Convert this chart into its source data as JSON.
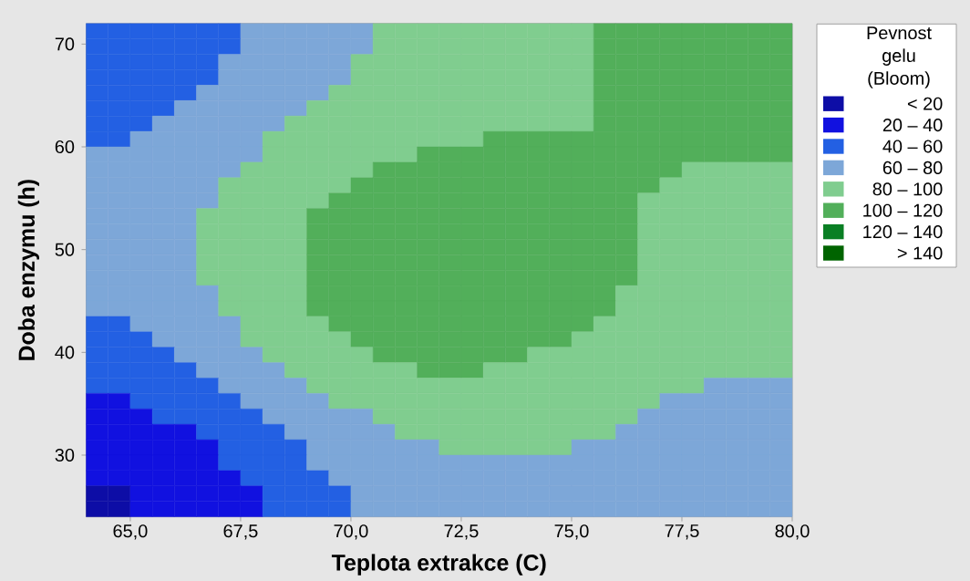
{
  "chart_data": {
    "type": "heatmap",
    "xlabel": "Teplota extrakce (C)",
    "ylabel": "Doba enzymu (h)",
    "clabel": "Pevnost gelu (Bloom)",
    "xlim": [
      64,
      80
    ],
    "xticks": [
      {
        "value": 65,
        "label": "65,0"
      },
      {
        "value": 67.5,
        "label": "67,5"
      },
      {
        "value": 70,
        "label": "70,0"
      },
      {
        "value": 72.5,
        "label": "72,5"
      },
      {
        "value": 75,
        "label": "75,0"
      },
      {
        "value": 77.5,
        "label": "77,5"
      },
      {
        "value": 80,
        "label": "80,0"
      }
    ],
    "ylim": [
      24,
      72
    ],
    "yticks": [
      30,
      40,
      50,
      60,
      70
    ],
    "cticks": [
      {
        "value": 10,
        "label": "< 20"
      },
      {
        "value": 30,
        "label": "20 – 40"
      },
      {
        "value": 50,
        "label": "40 – 60"
      },
      {
        "value": 70,
        "label": "60 – 80"
      },
      {
        "value": 90,
        "label": "80 – 100"
      },
      {
        "value": 110,
        "label": "100 – 120"
      },
      {
        "value": 130,
        "label": "120 – 140"
      },
      {
        "value": 150,
        "label": "> 140"
      }
    ],
    "colors": [
      "#0d0da6",
      "#1111e0",
      "#2360e3",
      "#7da7d8",
      "#80cd8f",
      "#52af5a",
      "#0a7f24",
      "#006400"
    ],
    "cells": [
      [
        50,
        50,
        50,
        50,
        50,
        50,
        50,
        70,
        70,
        70,
        70,
        70,
        70,
        90,
        90,
        90,
        90,
        90,
        90,
        90,
        90,
        90,
        90,
        110,
        110,
        110,
        110,
        110,
        110,
        110,
        110,
        110
      ],
      [
        50,
        50,
        50,
        50,
        50,
        50,
        50,
        70,
        70,
        70,
        70,
        70,
        70,
        90,
        90,
        90,
        90,
        90,
        90,
        90,
        90,
        90,
        90,
        110,
        110,
        110,
        110,
        110,
        110,
        110,
        110,
        110
      ],
      [
        50,
        50,
        50,
        50,
        50,
        50,
        70,
        70,
        70,
        70,
        70,
        70,
        90,
        90,
        90,
        90,
        90,
        90,
        90,
        90,
        90,
        90,
        90,
        110,
        110,
        110,
        110,
        110,
        110,
        110,
        110,
        110
      ],
      [
        50,
        50,
        50,
        50,
        50,
        50,
        70,
        70,
        70,
        70,
        70,
        70,
        90,
        90,
        90,
        90,
        90,
        90,
        90,
        90,
        90,
        90,
        90,
        110,
        110,
        110,
        110,
        110,
        110,
        110,
        110,
        110
      ],
      [
        50,
        50,
        50,
        50,
        50,
        70,
        70,
        70,
        70,
        70,
        70,
        90,
        90,
        90,
        90,
        90,
        90,
        90,
        90,
        90,
        90,
        90,
        90,
        110,
        110,
        110,
        110,
        110,
        110,
        110,
        110,
        110
      ],
      [
        50,
        50,
        50,
        50,
        70,
        70,
        70,
        70,
        70,
        70,
        90,
        90,
        90,
        90,
        90,
        90,
        90,
        90,
        90,
        90,
        90,
        90,
        90,
        110,
        110,
        110,
        110,
        110,
        110,
        110,
        110,
        110
      ],
      [
        50,
        50,
        50,
        70,
        70,
        70,
        70,
        70,
        70,
        90,
        90,
        90,
        90,
        90,
        90,
        90,
        90,
        90,
        90,
        90,
        90,
        90,
        90,
        110,
        110,
        110,
        110,
        110,
        110,
        110,
        110,
        110
      ],
      [
        50,
        50,
        70,
        70,
        70,
        70,
        70,
        70,
        90,
        90,
        90,
        90,
        90,
        90,
        90,
        90,
        90,
        90,
        110,
        110,
        110,
        110,
        110,
        110,
        110,
        110,
        110,
        110,
        110,
        110,
        110,
        110
      ],
      [
        70,
        70,
        70,
        70,
        70,
        70,
        70,
        70,
        90,
        90,
        90,
        90,
        90,
        90,
        90,
        110,
        110,
        110,
        110,
        110,
        110,
        110,
        110,
        110,
        110,
        110,
        110,
        110,
        110,
        110,
        110,
        110
      ],
      [
        70,
        70,
        70,
        70,
        70,
        70,
        70,
        90,
        90,
        90,
        90,
        90,
        90,
        110,
        110,
        110,
        110,
        110,
        110,
        110,
        110,
        110,
        110,
        110,
        110,
        110,
        110,
        90,
        90,
        90,
        90,
        90
      ],
      [
        70,
        70,
        70,
        70,
        70,
        70,
        90,
        90,
        90,
        90,
        90,
        90,
        110,
        110,
        110,
        110,
        110,
        110,
        110,
        110,
        110,
        110,
        110,
        110,
        110,
        110,
        90,
        90,
        90,
        90,
        90,
        90
      ],
      [
        70,
        70,
        70,
        70,
        70,
        70,
        90,
        90,
        90,
        90,
        90,
        110,
        110,
        110,
        110,
        110,
        110,
        110,
        110,
        110,
        110,
        110,
        110,
        110,
        110,
        90,
        90,
        90,
        90,
        90,
        90,
        90
      ],
      [
        70,
        70,
        70,
        70,
        70,
        90,
        90,
        90,
        90,
        90,
        110,
        110,
        110,
        110,
        110,
        110,
        110,
        110,
        110,
        110,
        110,
        110,
        110,
        110,
        110,
        90,
        90,
        90,
        90,
        90,
        90,
        90
      ],
      [
        70,
        70,
        70,
        70,
        70,
        90,
        90,
        90,
        90,
        90,
        110,
        110,
        110,
        110,
        110,
        110,
        110,
        110,
        110,
        110,
        110,
        110,
        110,
        110,
        110,
        90,
        90,
        90,
        90,
        90,
        90,
        90
      ],
      [
        70,
        70,
        70,
        70,
        70,
        90,
        90,
        90,
        90,
        90,
        110,
        110,
        110,
        110,
        110,
        110,
        110,
        110,
        110,
        110,
        110,
        110,
        110,
        110,
        110,
        90,
        90,
        90,
        90,
        90,
        90,
        90
      ],
      [
        70,
        70,
        70,
        70,
        70,
        90,
        90,
        90,
        90,
        90,
        110,
        110,
        110,
        110,
        110,
        110,
        110,
        110,
        110,
        110,
        110,
        110,
        110,
        110,
        110,
        90,
        90,
        90,
        90,
        90,
        90,
        90
      ],
      [
        70,
        70,
        70,
        70,
        70,
        90,
        90,
        90,
        90,
        90,
        110,
        110,
        110,
        110,
        110,
        110,
        110,
        110,
        110,
        110,
        110,
        110,
        110,
        110,
        110,
        90,
        90,
        90,
        90,
        90,
        90,
        90
      ],
      [
        70,
        70,
        70,
        70,
        70,
        70,
        90,
        90,
        90,
        90,
        110,
        110,
        110,
        110,
        110,
        110,
        110,
        110,
        110,
        110,
        110,
        110,
        110,
        110,
        90,
        90,
        90,
        90,
        90,
        90,
        90,
        90
      ],
      [
        70,
        70,
        70,
        70,
        70,
        70,
        90,
        90,
        90,
        90,
        110,
        110,
        110,
        110,
        110,
        110,
        110,
        110,
        110,
        110,
        110,
        110,
        110,
        110,
        90,
        90,
        90,
        90,
        90,
        90,
        90,
        90
      ],
      [
        50,
        50,
        70,
        70,
        70,
        70,
        70,
        90,
        90,
        90,
        90,
        110,
        110,
        110,
        110,
        110,
        110,
        110,
        110,
        110,
        110,
        110,
        110,
        90,
        90,
        90,
        90,
        90,
        90,
        90,
        90,
        90
      ],
      [
        50,
        50,
        50,
        70,
        70,
        70,
        70,
        90,
        90,
        90,
        90,
        90,
        110,
        110,
        110,
        110,
        110,
        110,
        110,
        110,
        110,
        110,
        90,
        90,
        90,
        90,
        90,
        90,
        90,
        90,
        90,
        90
      ],
      [
        50,
        50,
        50,
        50,
        70,
        70,
        70,
        70,
        90,
        90,
        90,
        90,
        90,
        110,
        110,
        110,
        110,
        110,
        110,
        110,
        90,
        90,
        90,
        90,
        90,
        90,
        90,
        90,
        90,
        90,
        90,
        90
      ],
      [
        50,
        50,
        50,
        50,
        50,
        70,
        70,
        70,
        70,
        90,
        90,
        90,
        90,
        90,
        90,
        110,
        110,
        110,
        90,
        90,
        90,
        90,
        90,
        90,
        90,
        90,
        90,
        90,
        90,
        90,
        90,
        90
      ],
      [
        50,
        50,
        50,
        50,
        50,
        50,
        70,
        70,
        70,
        70,
        90,
        90,
        90,
        90,
        90,
        90,
        90,
        90,
        90,
        90,
        90,
        90,
        90,
        90,
        90,
        90,
        90,
        90,
        70,
        70,
        70,
        70
      ],
      [
        30,
        30,
        50,
        50,
        50,
        50,
        50,
        70,
        70,
        70,
        70,
        90,
        90,
        90,
        90,
        90,
        90,
        90,
        90,
        90,
        90,
        90,
        90,
        90,
        90,
        90,
        70,
        70,
        70,
        70,
        70,
        70
      ],
      [
        30,
        30,
        30,
        50,
        50,
        50,
        50,
        50,
        70,
        70,
        70,
        70,
        70,
        90,
        90,
        90,
        90,
        90,
        90,
        90,
        90,
        90,
        90,
        90,
        90,
        70,
        70,
        70,
        70,
        70,
        70,
        70
      ],
      [
        30,
        30,
        30,
        30,
        30,
        50,
        50,
        50,
        50,
        70,
        70,
        70,
        70,
        70,
        90,
        90,
        90,
        90,
        90,
        90,
        90,
        90,
        90,
        90,
        70,
        70,
        70,
        70,
        70,
        70,
        70,
        70
      ],
      [
        30,
        30,
        30,
        30,
        30,
        30,
        50,
        50,
        50,
        50,
        70,
        70,
        70,
        70,
        70,
        70,
        90,
        90,
        90,
        90,
        90,
        90,
        70,
        70,
        70,
        70,
        70,
        70,
        70,
        70,
        70,
        70
      ],
      [
        30,
        30,
        30,
        30,
        30,
        30,
        50,
        50,
        50,
        50,
        70,
        70,
        70,
        70,
        70,
        70,
        70,
        70,
        70,
        70,
        70,
        70,
        70,
        70,
        70,
        70,
        70,
        70,
        70,
        70,
        70,
        70
      ],
      [
        30,
        30,
        30,
        30,
        30,
        30,
        30,
        50,
        50,
        50,
        50,
        70,
        70,
        70,
        70,
        70,
        70,
        70,
        70,
        70,
        70,
        70,
        70,
        70,
        70,
        70,
        70,
        70,
        70,
        70,
        70,
        70
      ],
      [
        10,
        10,
        30,
        30,
        30,
        30,
        30,
        30,
        50,
        50,
        50,
        50,
        70,
        70,
        70,
        70,
        70,
        70,
        70,
        70,
        70,
        70,
        70,
        70,
        70,
        70,
        70,
        70,
        70,
        70,
        70,
        70
      ],
      [
        10,
        10,
        30,
        30,
        30,
        30,
        30,
        30,
        50,
        50,
        50,
        50,
        70,
        70,
        70,
        70,
        70,
        70,
        70,
        70,
        70,
        70,
        70,
        70,
        70,
        70,
        70,
        70,
        70,
        70,
        70,
        70
      ]
    ]
  }
}
